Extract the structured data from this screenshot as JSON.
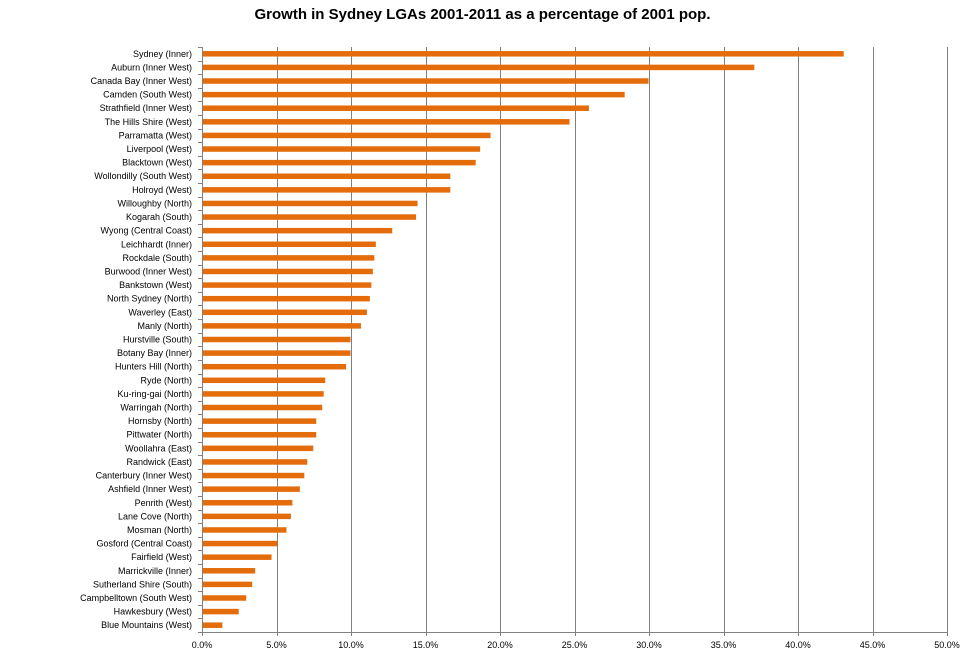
{
  "chart_data": {
    "type": "bar",
    "orientation": "horizontal",
    "title": "Growth in Sydney LGAs 2001-2011 as a percentage of 2001 pop.",
    "xlabel": "",
    "ylabel": "",
    "xlim": [
      0,
      50
    ],
    "x_tick_values": [
      0,
      5,
      10,
      15,
      20,
      25,
      30,
      35,
      40,
      45,
      50
    ],
    "x_tick_labels": [
      "0.0%",
      "5.0%",
      "10.0%",
      "15.0%",
      "20.0%",
      "25.0%",
      "30.0%",
      "35.0%",
      "40.0%",
      "45.0%",
      "50.0%"
    ],
    "grid": "vertical major gridlines",
    "legend": "none",
    "bar_color": "#E46C0A",
    "gridline_color": "#808080",
    "categories": [
      "Sydney (Inner)",
      "Auburn (Inner West)",
      "Canada Bay (Inner West)",
      "Camden (South West)",
      "Strathfield (Inner West)",
      "The Hills Shire (West)",
      "Parramatta (West)",
      "Liverpool (West)",
      "Blacktown (West)",
      "Wollondilly (South West)",
      "Holroyd (West)",
      "Willoughby (North)",
      "Kogarah (South)",
      "Wyong (Central Coast)",
      "Leichhardt (Inner)",
      "Rockdale (South)",
      "Burwood (Inner West)",
      "Bankstown (West)",
      "North Sydney (North)",
      "Waverley (East)",
      "Manly (North)",
      "Hurstville (South)",
      "Botany Bay (Inner)",
      "Hunters Hill (North)",
      "Ryde (North)",
      "Ku-ring-gai (North)",
      "Warringah (North)",
      "Hornsby (North)",
      "Pittwater (North)",
      "Woollahra (East)",
      "Randwick (East)",
      "Canterbury (Inner West)",
      "Ashfield (Inner West)",
      "Penrith (West)",
      "Lane Cove (North)",
      "Mosman (North)",
      "Gosford (Central Coast)",
      "Fairfield (West)",
      "Marrickville (Inner)",
      "Sutherland Shire (South)",
      "Campbelltown (South West)",
      "Hawkesbury (West)",
      "Blue Mountains (West)"
    ],
    "values": [
      43.0,
      37.0,
      29.9,
      28.3,
      25.9,
      24.6,
      19.3,
      18.6,
      18.3,
      16.6,
      16.6,
      14.4,
      14.3,
      12.7,
      11.6,
      11.5,
      11.4,
      11.3,
      11.2,
      11.0,
      10.6,
      9.9,
      9.9,
      9.6,
      8.2,
      8.1,
      8.0,
      7.6,
      7.6,
      7.4,
      7.0,
      6.8,
      6.5,
      6.0,
      5.9,
      5.6,
      5.0,
      4.6,
      3.5,
      3.3,
      2.9,
      2.4,
      1.3
    ]
  }
}
